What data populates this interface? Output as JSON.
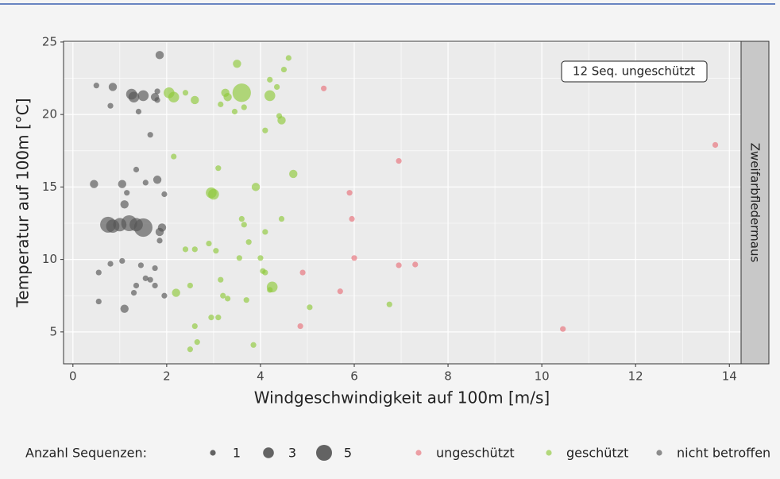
{
  "chart_data": {
    "type": "scatter",
    "xlabel": "Windgeschwindigkeit auf 100m [m/s]",
    "ylabel": "Temperatur auf 100m [°C]",
    "facet": "Zweifarbfledermaus",
    "annotation": "12 Seq. ungeschützt",
    "xlim": [
      -0.2,
      14.25
    ],
    "xticks": [
      0,
      2,
      4,
      6,
      8,
      10,
      12,
      14
    ],
    "ylim": [
      2.8,
      25.05
    ],
    "yticks": [
      5,
      10,
      15,
      20,
      25
    ],
    "grid": true,
    "size_legend": {
      "title": "Anzahl Sequenzen:",
      "values": [
        1,
        3,
        5
      ]
    },
    "series": [
      {
        "name": "ungeschützt",
        "color": "#e8707a",
        "x": [
          5.35,
          13.7,
          6.95,
          5.9,
          5.95,
          6.0,
          6.95,
          7.3,
          4.9,
          5.7,
          4.85,
          10.45
        ],
        "values": [
          21.8,
          17.9,
          16.8,
          14.6,
          12.8,
          10.1,
          9.6,
          9.65,
          9.1,
          7.8,
          5.4,
          5.2
        ],
        "sizes": [
          1,
          1,
          1,
          1,
          1,
          1,
          1,
          1,
          1,
          1,
          1,
          1
        ]
      },
      {
        "name": "geschützt",
        "color": "#8fc93a",
        "x": [
          4.6,
          3.5,
          4.5,
          4.2,
          2.05,
          2.15,
          2.4,
          2.6,
          3.25,
          3.3,
          3.6,
          4.2,
          4.35,
          3.15,
          3.45,
          3.65,
          4.4,
          4.45,
          4.1,
          2.15,
          3.1,
          4.7,
          2.95,
          3.0,
          3.9,
          3.6,
          3.65,
          4.45,
          4.1,
          3.75,
          2.9,
          3.05,
          2.4,
          2.6,
          3.55,
          4.0,
          4.05,
          4.1,
          3.15,
          4.25,
          4.2,
          2.2,
          2.5,
          3.2,
          3.3,
          3.7,
          5.05,
          6.75,
          2.95,
          3.1,
          2.6,
          2.65,
          2.5,
          3.85
        ],
        "values": [
          23.9,
          23.5,
          23.1,
          22.4,
          21.5,
          21.2,
          21.5,
          21.0,
          21.5,
          21.2,
          21.5,
          21.3,
          21.9,
          20.7,
          20.2,
          20.5,
          19.9,
          19.6,
          18.9,
          17.1,
          16.3,
          15.9,
          14.6,
          14.5,
          15.0,
          12.8,
          12.4,
          12.8,
          11.9,
          11.2,
          11.1,
          10.6,
          10.7,
          10.7,
          10.1,
          10.1,
          9.2,
          9.1,
          8.6,
          8.1,
          7.9,
          7.7,
          8.2,
          7.5,
          7.3,
          7.2,
          6.7,
          6.9,
          6.0,
          6.0,
          5.4,
          4.3,
          3.8,
          4.1
        ],
        "sizes": [
          1,
          2,
          1,
          1,
          3,
          3,
          1,
          2,
          2,
          2,
          6,
          3,
          1,
          1,
          1,
          1,
          1,
          2,
          1,
          1,
          1,
          2,
          3,
          3,
          2,
          1,
          1,
          1,
          1,
          1,
          1,
          1,
          1,
          1,
          1,
          1,
          1,
          1,
          1,
          3,
          1,
          2,
          1,
          1,
          1,
          1,
          1,
          1,
          1,
          1,
          1,
          1,
          1,
          1
        ]
      },
      {
        "name": "nicht betroffen",
        "color": "#555555",
        "x": [
          1.85,
          0.5,
          0.85,
          0.8,
          1.25,
          1.3,
          1.5,
          1.75,
          1.8,
          1.8,
          1.4,
          1.65,
          0.45,
          1.05,
          1.35,
          1.8,
          1.55,
          1.15,
          1.95,
          1.1,
          0.75,
          0.85,
          1.0,
          1.2,
          1.35,
          1.5,
          1.9,
          1.85,
          1.85,
          0.8,
          1.05,
          0.55,
          1.45,
          1.75,
          1.65,
          1.55,
          1.35,
          1.75,
          1.3,
          1.95,
          0.55,
          1.1
        ],
        "values": [
          24.1,
          22.0,
          21.9,
          20.6,
          21.4,
          21.2,
          21.3,
          21.2,
          21.6,
          21.0,
          20.2,
          18.6,
          15.2,
          15.2,
          16.2,
          15.5,
          15.3,
          14.6,
          14.5,
          13.8,
          12.4,
          12.3,
          12.4,
          12.5,
          12.4,
          12.2,
          12.2,
          11.9,
          11.3,
          9.7,
          9.9,
          9.1,
          9.6,
          9.4,
          8.6,
          8.7,
          8.2,
          8.2,
          7.7,
          7.5,
          7.1,
          6.6
        ],
        "sizes": [
          2,
          1,
          2,
          1,
          3,
          3,
          3,
          2,
          1,
          1,
          1,
          1,
          2,
          2,
          1,
          2,
          1,
          1,
          1,
          2,
          5,
          4,
          4,
          5,
          4,
          6,
          2,
          2,
          1,
          1,
          1,
          1,
          1,
          1,
          1,
          1,
          1,
          1,
          1,
          1,
          1,
          2
        ]
      }
    ]
  }
}
